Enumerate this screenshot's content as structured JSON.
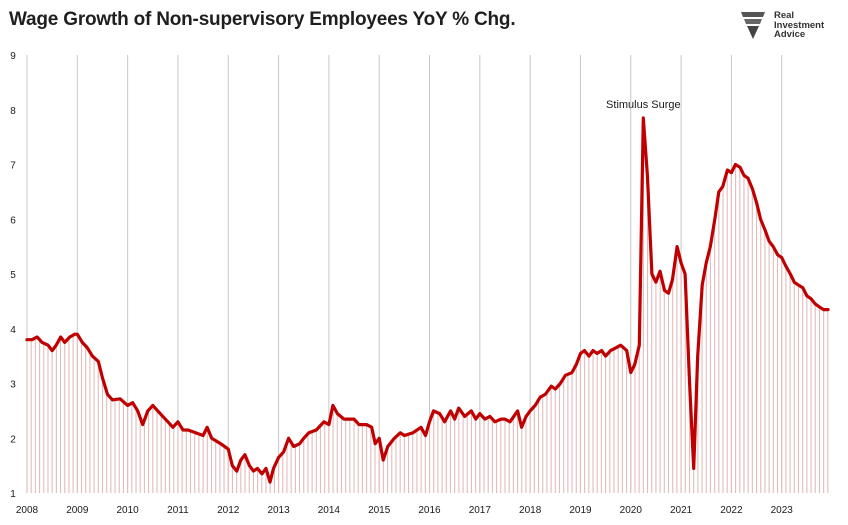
{
  "chart_data": {
    "type": "line",
    "title": "Wage Growth of Non-supervisory Employees YoY % Chg.",
    "xlabel": "",
    "ylabel": "",
    "ylim": [
      1,
      9
    ],
    "xlim": [
      2008.0,
      2023.92
    ],
    "grid": {
      "vertical": true,
      "horizontal": false
    },
    "yticks": [
      1,
      2,
      3,
      4,
      5,
      6,
      7,
      8,
      9
    ],
    "xticks": [
      "2008",
      "2009",
      "2010",
      "2011",
      "2012",
      "2013",
      "2014",
      "2015",
      "2016",
      "2017",
      "2018",
      "2019",
      "2020",
      "2021",
      "2022",
      "2023"
    ],
    "annotation": {
      "text": "Stimulus Surge",
      "x": 2020.25,
      "y": 7.85
    },
    "series": [
      {
        "color": "#c00000",
        "points": [
          [
            2008.0,
            3.8
          ],
          [
            2008.1,
            3.8
          ],
          [
            2008.2,
            3.85
          ],
          [
            2008.3,
            3.75
          ],
          [
            2008.42,
            3.7
          ],
          [
            2008.5,
            3.6
          ],
          [
            2008.58,
            3.7
          ],
          [
            2008.67,
            3.85
          ],
          [
            2008.75,
            3.75
          ],
          [
            2008.85,
            3.85
          ],
          [
            2008.95,
            3.9
          ],
          [
            2009.0,
            3.9
          ],
          [
            2009.1,
            3.75
          ],
          [
            2009.2,
            3.65
          ],
          [
            2009.3,
            3.5
          ],
          [
            2009.42,
            3.4
          ],
          [
            2009.5,
            3.1
          ],
          [
            2009.6,
            2.8
          ],
          [
            2009.7,
            2.7
          ],
          [
            2009.85,
            2.72
          ],
          [
            2010.0,
            2.6
          ],
          [
            2010.1,
            2.65
          ],
          [
            2010.2,
            2.5
          ],
          [
            2010.3,
            2.25
          ],
          [
            2010.4,
            2.5
          ],
          [
            2010.5,
            2.6
          ],
          [
            2010.6,
            2.5
          ],
          [
            2010.7,
            2.4
          ],
          [
            2010.8,
            2.3
          ],
          [
            2010.9,
            2.2
          ],
          [
            2011.0,
            2.3
          ],
          [
            2011.1,
            2.15
          ],
          [
            2011.2,
            2.15
          ],
          [
            2011.35,
            2.1
          ],
          [
            2011.5,
            2.05
          ],
          [
            2011.58,
            2.2
          ],
          [
            2011.67,
            2.0
          ],
          [
            2011.85,
            1.9
          ],
          [
            2012.0,
            1.8
          ],
          [
            2012.08,
            1.5
          ],
          [
            2012.17,
            1.4
          ],
          [
            2012.25,
            1.6
          ],
          [
            2012.33,
            1.7
          ],
          [
            2012.42,
            1.5
          ],
          [
            2012.5,
            1.4
          ],
          [
            2012.58,
            1.45
          ],
          [
            2012.67,
            1.35
          ],
          [
            2012.75,
            1.45
          ],
          [
            2012.83,
            1.2
          ],
          [
            2012.9,
            1.45
          ],
          [
            2013.0,
            1.65
          ],
          [
            2013.1,
            1.75
          ],
          [
            2013.2,
            2.0
          ],
          [
            2013.3,
            1.85
          ],
          [
            2013.42,
            1.9
          ],
          [
            2013.5,
            2.0
          ],
          [
            2013.6,
            2.1
          ],
          [
            2013.75,
            2.15
          ],
          [
            2013.9,
            2.3
          ],
          [
            2014.0,
            2.25
          ],
          [
            2014.08,
            2.6
          ],
          [
            2014.17,
            2.45
          ],
          [
            2014.3,
            2.35
          ],
          [
            2014.5,
            2.35
          ],
          [
            2014.6,
            2.25
          ],
          [
            2014.75,
            2.25
          ],
          [
            2014.85,
            2.2
          ],
          [
            2014.92,
            1.9
          ],
          [
            2015.0,
            2.0
          ],
          [
            2015.08,
            1.6
          ],
          [
            2015.17,
            1.85
          ],
          [
            2015.3,
            2.0
          ],
          [
            2015.42,
            2.1
          ],
          [
            2015.5,
            2.05
          ],
          [
            2015.67,
            2.1
          ],
          [
            2015.83,
            2.2
          ],
          [
            2015.92,
            2.05
          ],
          [
            2016.0,
            2.3
          ],
          [
            2016.08,
            2.5
          ],
          [
            2016.2,
            2.45
          ],
          [
            2016.3,
            2.3
          ],
          [
            2016.42,
            2.5
          ],
          [
            2016.5,
            2.35
          ],
          [
            2016.58,
            2.55
          ],
          [
            2016.7,
            2.4
          ],
          [
            2016.83,
            2.5
          ],
          [
            2016.92,
            2.35
          ],
          [
            2017.0,
            2.45
          ],
          [
            2017.1,
            2.35
          ],
          [
            2017.2,
            2.4
          ],
          [
            2017.3,
            2.3
          ],
          [
            2017.42,
            2.35
          ],
          [
            2017.5,
            2.35
          ],
          [
            2017.6,
            2.3
          ],
          [
            2017.75,
            2.5
          ],
          [
            2017.83,
            2.2
          ],
          [
            2017.92,
            2.4
          ],
          [
            2018.0,
            2.5
          ],
          [
            2018.1,
            2.6
          ],
          [
            2018.2,
            2.75
          ],
          [
            2018.3,
            2.8
          ],
          [
            2018.42,
            2.95
          ],
          [
            2018.5,
            2.9
          ],
          [
            2018.6,
            3.0
          ],
          [
            2018.7,
            3.15
          ],
          [
            2018.83,
            3.2
          ],
          [
            2018.92,
            3.35
          ],
          [
            2019.0,
            3.55
          ],
          [
            2019.08,
            3.6
          ],
          [
            2019.17,
            3.5
          ],
          [
            2019.25,
            3.6
          ],
          [
            2019.33,
            3.55
          ],
          [
            2019.42,
            3.6
          ],
          [
            2019.5,
            3.5
          ],
          [
            2019.6,
            3.6
          ],
          [
            2019.7,
            3.65
          ],
          [
            2019.8,
            3.7
          ],
          [
            2019.92,
            3.6
          ],
          [
            2020.0,
            3.2
          ],
          [
            2020.08,
            3.35
          ],
          [
            2020.17,
            3.7
          ],
          [
            2020.25,
            7.85
          ],
          [
            2020.33,
            6.8
          ],
          [
            2020.42,
            5.0
          ],
          [
            2020.5,
            4.85
          ],
          [
            2020.58,
            5.05
          ],
          [
            2020.67,
            4.7
          ],
          [
            2020.75,
            4.65
          ],
          [
            2020.83,
            4.9
          ],
          [
            2020.92,
            5.5
          ],
          [
            2021.0,
            5.2
          ],
          [
            2021.08,
            5.0
          ],
          [
            2021.17,
            3.0
          ],
          [
            2021.25,
            1.45
          ],
          [
            2021.33,
            3.5
          ],
          [
            2021.42,
            4.8
          ],
          [
            2021.5,
            5.2
          ],
          [
            2021.58,
            5.5
          ],
          [
            2021.67,
            6.0
          ],
          [
            2021.75,
            6.5
          ],
          [
            2021.83,
            6.6
          ],
          [
            2021.92,
            6.9
          ],
          [
            2022.0,
            6.85
          ],
          [
            2022.08,
            7.0
          ],
          [
            2022.17,
            6.95
          ],
          [
            2022.25,
            6.8
          ],
          [
            2022.33,
            6.75
          ],
          [
            2022.42,
            6.55
          ],
          [
            2022.5,
            6.3
          ],
          [
            2022.58,
            6.0
          ],
          [
            2022.67,
            5.8
          ],
          [
            2022.75,
            5.6
          ],
          [
            2022.83,
            5.5
          ],
          [
            2022.92,
            5.35
          ],
          [
            2023.0,
            5.3
          ],
          [
            2023.08,
            5.15
          ],
          [
            2023.17,
            5.0
          ],
          [
            2023.25,
            4.85
          ],
          [
            2023.33,
            4.8
          ],
          [
            2023.42,
            4.75
          ],
          [
            2023.5,
            4.6
          ],
          [
            2023.58,
            4.55
          ],
          [
            2023.67,
            4.45
          ],
          [
            2023.75,
            4.4
          ],
          [
            2023.83,
            4.35
          ],
          [
            2023.92,
            4.35
          ]
        ]
      }
    ]
  },
  "logo": {
    "name": "Real\nInvestment\nAdvice",
    "icon": "shield-eagle-icon",
    "color": "#555555"
  }
}
